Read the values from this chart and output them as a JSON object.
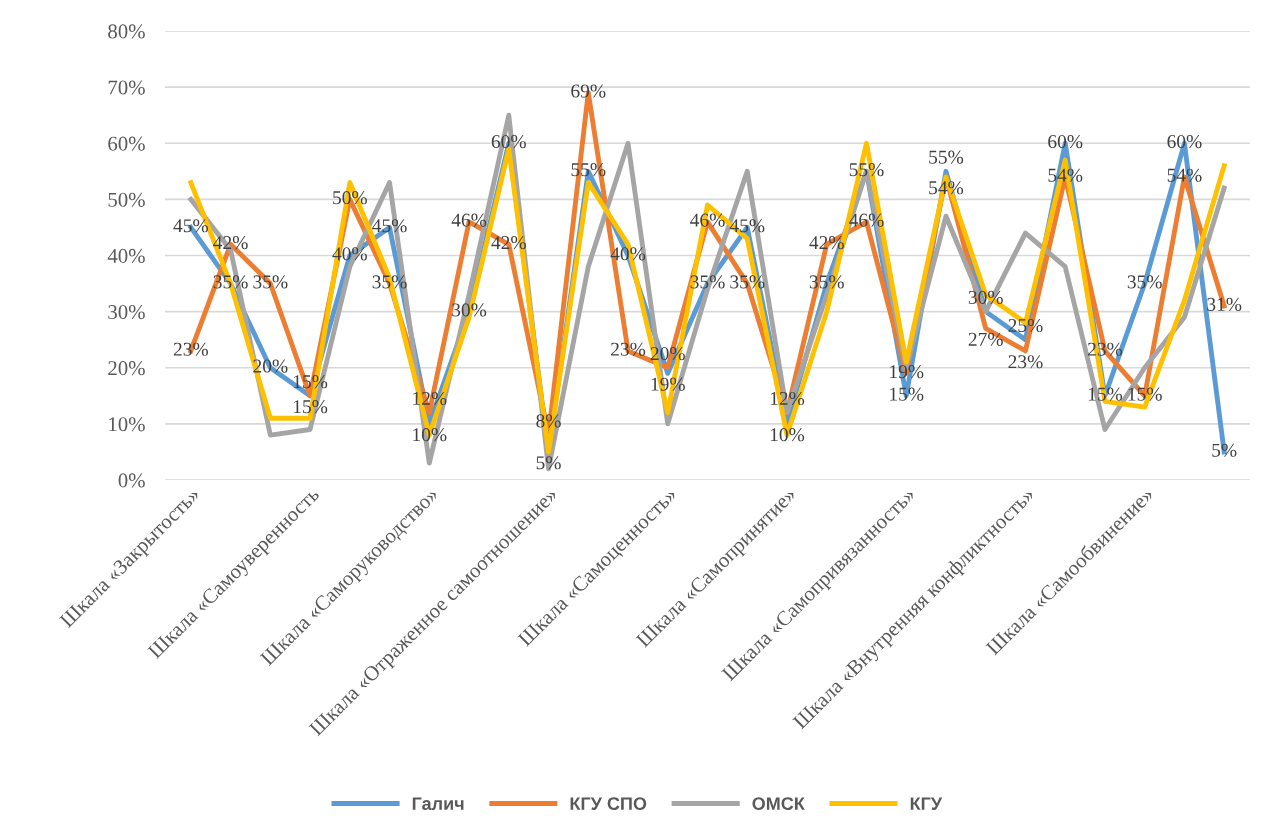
{
  "chart_data": {
    "type": "line",
    "categories": [
      "Шкала «Закрытость»",
      null,
      null,
      "Шкала «Самоуверенность",
      null,
      null,
      "Шкала «Саморуководство»",
      null,
      null,
      "Шкала «Отраженное самоотношение»",
      null,
      null,
      "Шкала «Самоценность»",
      null,
      null,
      "Шкала «Самопринятие»",
      null,
      null,
      "Шкала «Самопривязанность»",
      null,
      null,
      "Шкала «Внутренняя конфликтность»",
      null,
      null,
      "Шкала «Самообвинение»",
      null,
      null
    ],
    "series": [
      {
        "name": "Галич",
        "color": "#5b9bd5",
        "values": [
          45,
          35,
          20,
          15,
          40,
          45,
          10,
          30,
          60,
          5,
          55,
          40,
          19,
          35,
          45,
          10,
          35,
          55,
          15,
          55,
          30,
          25,
          60,
          15,
          35,
          60,
          5
        ],
        "value_labels": [
          "45%",
          "35%",
          "20%",
          "15%",
          "40%",
          "45%",
          "10%",
          "30%",
          "60%",
          "5%",
          "55%",
          "40%",
          "19%",
          "35%",
          "45%",
          "10%",
          "35%",
          "55%",
          "15%",
          "55%",
          "30%",
          "25%",
          "60%",
          "15%",
          "35%",
          "60%",
          "5%"
        ]
      },
      {
        "name": "КГУ СПО",
        "color": "#ed7d31",
        "values": [
          23,
          42,
          35,
          15,
          50,
          35,
          12,
          46,
          42,
          8,
          69,
          23,
          20,
          46,
          35,
          12,
          42,
          46,
          19,
          54,
          27,
          23,
          54,
          23,
          15,
          54,
          31
        ],
        "value_labels": [
          "23%",
          "42%",
          "35%",
          "15%",
          "50%",
          "35%",
          "12%",
          "46%",
          "42%",
          "8%",
          "69%",
          "23%",
          "20%",
          "46%",
          "35%",
          "12%",
          "42%",
          "46%",
          "19%",
          "54%",
          "27%",
          "23%",
          "54%",
          "23%",
          "15%",
          "54%",
          "31%"
        ]
      },
      {
        "name": "ОМСК",
        "color": "#a5a5a5",
        "values": [
          50,
          41,
          8,
          9,
          38,
          53,
          3,
          33,
          65,
          2,
          38,
          60,
          10,
          34,
          55,
          12,
          33,
          55,
          20,
          47,
          30,
          44,
          38,
          9,
          20,
          29,
          52
        ]
      },
      {
        "name": "КГУ",
        "color": "#ffc000",
        "values": [
          53,
          35,
          11,
          11,
          53,
          36,
          8,
          29,
          59,
          5,
          53,
          42,
          12,
          49,
          43,
          8,
          30,
          60,
          21,
          54,
          33,
          28,
          57,
          14,
          13,
          32,
          56
        ]
      }
    ],
    "ylim": [
      0,
      80
    ],
    "yticks": [
      {
        "value": 0,
        "label": "0%"
      },
      {
        "value": 10,
        "label": "10%"
      },
      {
        "value": 20,
        "label": "20%"
      },
      {
        "value": 30,
        "label": "30%"
      },
      {
        "value": 40,
        "label": "40%"
      },
      {
        "value": 50,
        "label": "50%"
      },
      {
        "value": 60,
        "label": "60%"
      },
      {
        "value": 70,
        "label": "70%"
      },
      {
        "value": 80,
        "label": "80%"
      }
    ],
    "grid": "y",
    "legend": "bottom",
    "marker": "none",
    "line_style": "solid"
  }
}
